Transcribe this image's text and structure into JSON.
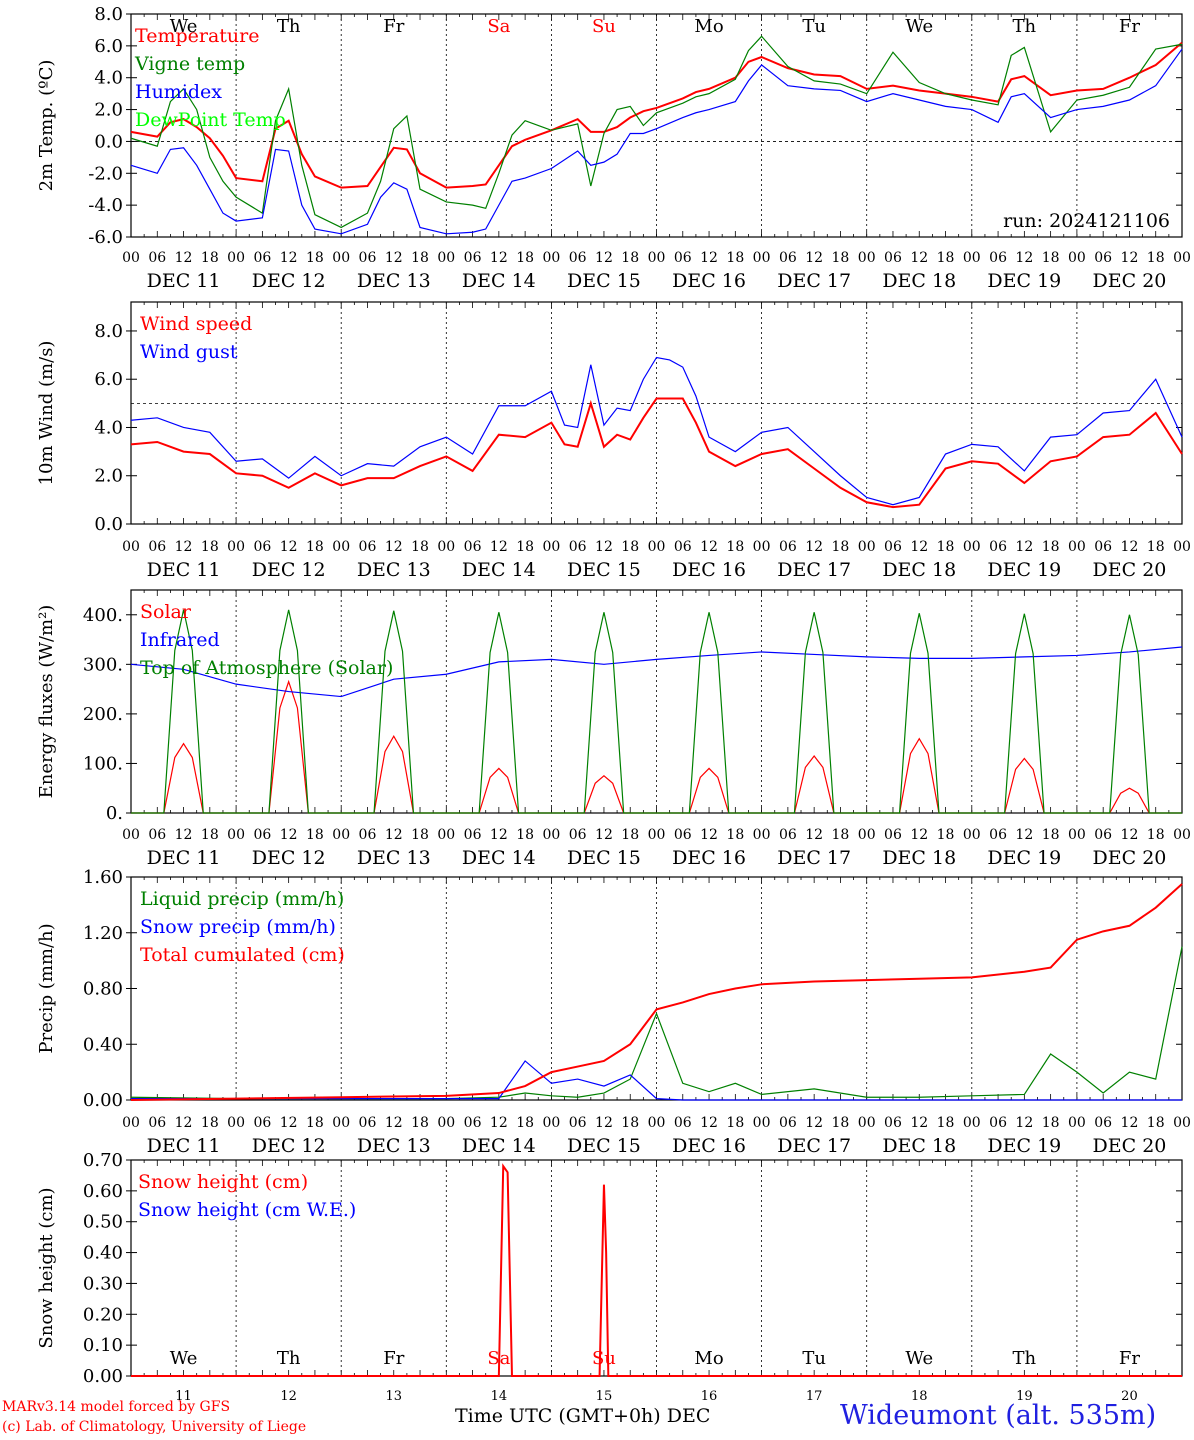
{
  "chart_data": [
    {
      "type": "line",
      "id": "temp",
      "ylabel": "2m Temp. (ºC)",
      "ylim": [
        -6,
        8
      ],
      "yticks": [
        -6,
        -4,
        -2,
        0,
        2,
        4,
        6,
        8
      ],
      "ytick_labels": [
        "-6.0",
        "-4.0",
        "-2.0",
        "0.0",
        "2.0",
        "4.0",
        "6.0",
        "8.0"
      ],
      "ref_line": 0,
      "annotation": "run: 2024121106",
      "x_hours": [
        0,
        6,
        9,
        12,
        15,
        18,
        21,
        24,
        30,
        33,
        36,
        39,
        42,
        48,
        54,
        57,
        60,
        63,
        66,
        72,
        78,
        81,
        84,
        87,
        90,
        96,
        102,
        105,
        108,
        111,
        114,
        117,
        120,
        126,
        129,
        132,
        138,
        141,
        144,
        150,
        156,
        162,
        168,
        174,
        180,
        186,
        192,
        198,
        201,
        204,
        210,
        216,
        222,
        228,
        234,
        240
      ],
      "series": [
        {
          "name": "Temperature",
          "color": "#ff0000",
          "values": [
            0.6,
            0.3,
            1.2,
            1.4,
            0.9,
            0.2,
            -0.9,
            -2.3,
            -2.5,
            0.8,
            1.3,
            -0.8,
            -2.2,
            -2.9,
            -2.8,
            -1.6,
            -0.4,
            -0.5,
            -2.0,
            -2.9,
            -2.8,
            -2.7,
            -1.5,
            -0.3,
            0.1,
            0.7,
            1.4,
            0.6,
            0.6,
            0.9,
            1.5,
            1.9,
            2.1,
            2.7,
            3.1,
            3.3,
            4.0,
            5.0,
            5.3,
            4.6,
            4.2,
            4.1,
            3.3,
            3.5,
            3.2,
            3.0,
            2.8,
            2.5,
            3.9,
            4.1,
            2.9,
            3.2,
            3.3,
            4.0,
            4.8,
            6.2
          ]
        },
        {
          "name": "Vigne temp",
          "color": "#008000",
          "values": [
            0.2,
            -0.3,
            2.5,
            3.3,
            2.0,
            -1.0,
            -2.5,
            -3.5,
            -4.5,
            1.3,
            3.3,
            -1.5,
            -4.6,
            -5.4,
            -4.5,
            -2.5,
            0.8,
            1.6,
            -3.0,
            -3.8,
            -4.0,
            -4.2,
            -2.0,
            0.4,
            1.3,
            0.7,
            1.1,
            -2.8,
            0.5,
            2.0,
            2.2,
            1.0,
            1.8,
            2.4,
            2.8,
            3.0,
            3.9,
            5.7,
            6.6,
            4.7,
            3.8,
            3.6,
            3.0,
            5.6,
            3.7,
            3.0,
            2.6,
            2.3,
            5.4,
            5.9,
            0.6,
            2.6,
            2.9,
            3.4,
            5.8,
            6.1
          ]
        },
        {
          "name": "Humidex",
          "color": "#0000ff",
          "values": [
            -1.5,
            -2.0,
            -0.5,
            -0.4,
            -1.5,
            -3.0,
            -4.5,
            -5.0,
            -4.8,
            -0.5,
            -0.6,
            -4.0,
            -5.5,
            -5.8,
            -5.2,
            -3.5,
            -2.6,
            -3.0,
            -5.4,
            -5.8,
            -5.7,
            -5.5,
            -4.0,
            -2.5,
            -2.3,
            -1.7,
            -0.6,
            -1.5,
            -1.3,
            -0.8,
            0.5,
            0.5,
            0.8,
            1.5,
            1.8,
            2.0,
            2.5,
            3.8,
            4.8,
            3.5,
            3.3,
            3.2,
            2.5,
            3.0,
            2.6,
            2.2,
            2.0,
            1.2,
            2.8,
            3.0,
            1.5,
            2.0,
            2.2,
            2.6,
            3.5,
            5.8
          ]
        },
        {
          "name": "DewPoint Temp",
          "color": "#00ff00",
          "values": []
        }
      ]
    },
    {
      "type": "line",
      "id": "wind",
      "ylabel": "10m Wind (m/s)",
      "ylim": [
        0,
        9.2
      ],
      "yticks": [
        0,
        2,
        4,
        6,
        8
      ],
      "ytick_labels": [
        "0.0",
        "2.0",
        "4.0",
        "6.0",
        "8.0"
      ],
      "ref_line": 5,
      "x_hours": [
        0,
        6,
        12,
        18,
        24,
        30,
        36,
        42,
        48,
        54,
        60,
        66,
        72,
        78,
        84,
        90,
        96,
        99,
        102,
        105,
        108,
        111,
        114,
        117,
        120,
        123,
        126,
        129,
        132,
        138,
        144,
        150,
        156,
        162,
        168,
        174,
        180,
        186,
        192,
        198,
        204,
        210,
        216,
        222,
        228,
        234,
        240
      ],
      "series": [
        {
          "name": "Wind speed",
          "color": "#ff0000",
          "values": [
            3.3,
            3.4,
            3.0,
            2.9,
            2.1,
            2.0,
            1.5,
            2.1,
            1.6,
            1.9,
            1.9,
            2.4,
            2.8,
            2.2,
            3.7,
            3.6,
            4.2,
            3.3,
            3.2,
            5.0,
            3.2,
            3.7,
            3.5,
            4.4,
            5.2,
            5.2,
            5.2,
            4.2,
            3.0,
            2.4,
            2.9,
            3.1,
            2.3,
            1.5,
            0.9,
            0.7,
            0.8,
            2.3,
            2.6,
            2.5,
            1.7,
            2.6,
            2.8,
            3.6,
            3.7,
            4.6,
            2.9
          ]
        },
        {
          "name": "Wind gust",
          "color": "#0000ff",
          "values": [
            4.3,
            4.4,
            4.0,
            3.8,
            2.6,
            2.7,
            1.9,
            2.8,
            2.0,
            2.5,
            2.4,
            3.2,
            3.6,
            2.9,
            4.9,
            4.9,
            5.5,
            4.1,
            4.0,
            6.6,
            4.1,
            4.8,
            4.7,
            6.0,
            6.9,
            6.8,
            6.5,
            5.3,
            3.6,
            3.0,
            3.8,
            4.0,
            3.0,
            2.0,
            1.1,
            0.8,
            1.1,
            2.9,
            3.3,
            3.2,
            2.2,
            3.6,
            3.7,
            4.6,
            4.7,
            6.0,
            3.6
          ]
        }
      ]
    },
    {
      "type": "line",
      "id": "energy",
      "ylabel": "Energy fluxes (W/m²)",
      "ylim": [
        0,
        450
      ],
      "yticks": [
        0,
        100,
        200,
        300,
        400
      ],
      "ytick_labels": [
        "0.",
        "100.",
        "200.",
        "300.",
        "400."
      ],
      "x_hours": [
        0,
        12,
        24,
        36,
        48,
        60,
        72,
        84,
        96,
        108,
        120,
        132,
        144,
        156,
        168,
        180,
        192,
        204,
        216,
        228,
        240
      ],
      "series": [
        {
          "name": "Solar",
          "color": "#ff0000",
          "peaks": [
            140,
            265,
            155,
            90,
            75,
            90,
            115,
            150,
            110,
            50
          ]
        },
        {
          "name": "Infrared",
          "color": "#0000ff",
          "values": [
            300,
            290,
            260,
            245,
            235,
            270,
            280,
            305,
            310,
            300,
            310,
            318,
            325,
            320,
            315,
            312,
            312,
            315,
            318,
            325,
            335
          ]
        },
        {
          "name": "Top of Atmosphere (Solar)",
          "color": "#008000",
          "peaks": [
            410,
            410,
            408,
            405,
            405,
            405,
            405,
            403,
            402,
            400
          ]
        }
      ]
    },
    {
      "type": "line",
      "id": "precip",
      "ylabel": "Precip (mm/h)",
      "ylim": [
        0,
        1.6
      ],
      "yticks": [
        0,
        0.4,
        0.8,
        1.2,
        1.6
      ],
      "ytick_labels": [
        "0.00",
        "0.40",
        "0.80",
        "1.20",
        "1.60"
      ],
      "x_hours": [
        0,
        24,
        48,
        72,
        84,
        90,
        96,
        102,
        108,
        114,
        120,
        126,
        132,
        138,
        144,
        156,
        168,
        180,
        192,
        204,
        210,
        216,
        222,
        228,
        234,
        240
      ],
      "series": [
        {
          "name": "Liquid precip (mm/h)",
          "color": "#008000",
          "values": [
            0.02,
            0.01,
            0.01,
            0.01,
            0.02,
            0.05,
            0.03,
            0.02,
            0.05,
            0.15,
            0.62,
            0.12,
            0.06,
            0.12,
            0.04,
            0.08,
            0.02,
            0.02,
            0.03,
            0.04,
            0.33,
            0.2,
            0.05,
            0.2,
            0.15,
            1.1
          ]
        },
        {
          "name": "Snow precip (mm/h)",
          "color": "#0000ff",
          "values": [
            0.01,
            0.01,
            0.01,
            0.01,
            0.01,
            0.28,
            0.12,
            0.15,
            0.1,
            0.18,
            0.01,
            0.0,
            0.0,
            0.0,
            0.0,
            0.0,
            0.0,
            0.0,
            0.0,
            0.0,
            0.0,
            0.0,
            0.0,
            0.0,
            0.0,
            0.0
          ]
        },
        {
          "name": "Total cumulated (cm)",
          "color": "#ff0000",
          "values": [
            0.0,
            0.01,
            0.02,
            0.03,
            0.05,
            0.1,
            0.2,
            0.24,
            0.28,
            0.4,
            0.65,
            0.7,
            0.76,
            0.8,
            0.83,
            0.85,
            0.86,
            0.87,
            0.88,
            0.92,
            0.95,
            1.15,
            1.21,
            1.25,
            1.38,
            1.55
          ]
        }
      ]
    },
    {
      "type": "line",
      "id": "snow",
      "ylabel": "Snow height (cm)",
      "ylim": [
        0,
        0.7
      ],
      "yticks": [
        0,
        0.1,
        0.2,
        0.3,
        0.4,
        0.5,
        0.6,
        0.7
      ],
      "ytick_labels": [
        "0.00",
        "0.10",
        "0.20",
        "0.30",
        "0.40",
        "0.50",
        "0.60",
        "0.70"
      ],
      "x_hours": [
        0,
        84,
        85,
        86,
        87,
        107,
        108,
        108.5,
        109,
        240
      ],
      "series": [
        {
          "name": "Snow height (cm)",
          "color": "#ff0000",
          "values": [
            0,
            0,
            0.68,
            0.66,
            0,
            0,
            0.62,
            0.4,
            0,
            0
          ]
        },
        {
          "name": "Snow height (cm W.E.)",
          "color": "#0000ff",
          "values": []
        }
      ]
    }
  ],
  "x_axis": {
    "hour_ticks": [
      "00",
      "06",
      "12",
      "18"
    ],
    "end_tick": "00",
    "dates": [
      "DEC 11",
      "DEC 12",
      "DEC 13",
      "DEC 14",
      "DEC 15",
      "DEC 16",
      "DEC 17",
      "DEC 18",
      "DEC 19",
      "DEC 20"
    ],
    "weekdays": [
      "We",
      "Th",
      "Fr",
      "Sa",
      "Su",
      "Mo",
      "Tu",
      "We",
      "Th",
      "Fr"
    ],
    "day_numbers": [
      "11",
      "12",
      "13",
      "14",
      "15",
      "16",
      "17",
      "18",
      "19",
      "20"
    ],
    "weekday_colors": [
      "#000000",
      "#000000",
      "#000000",
      "#ff0000",
      "#ff0000",
      "#000000",
      "#000000",
      "#000000",
      "#000000",
      "#000000"
    ],
    "title": "Time UTC (GMT+0h)",
    "month": "DEC"
  },
  "footer": {
    "credit_line1": "MARv3.14 model forced by GFS",
    "credit_line2": "(c) Lab. of Climatology, University of Liege",
    "station": "Wideumont (alt. 535m)"
  }
}
